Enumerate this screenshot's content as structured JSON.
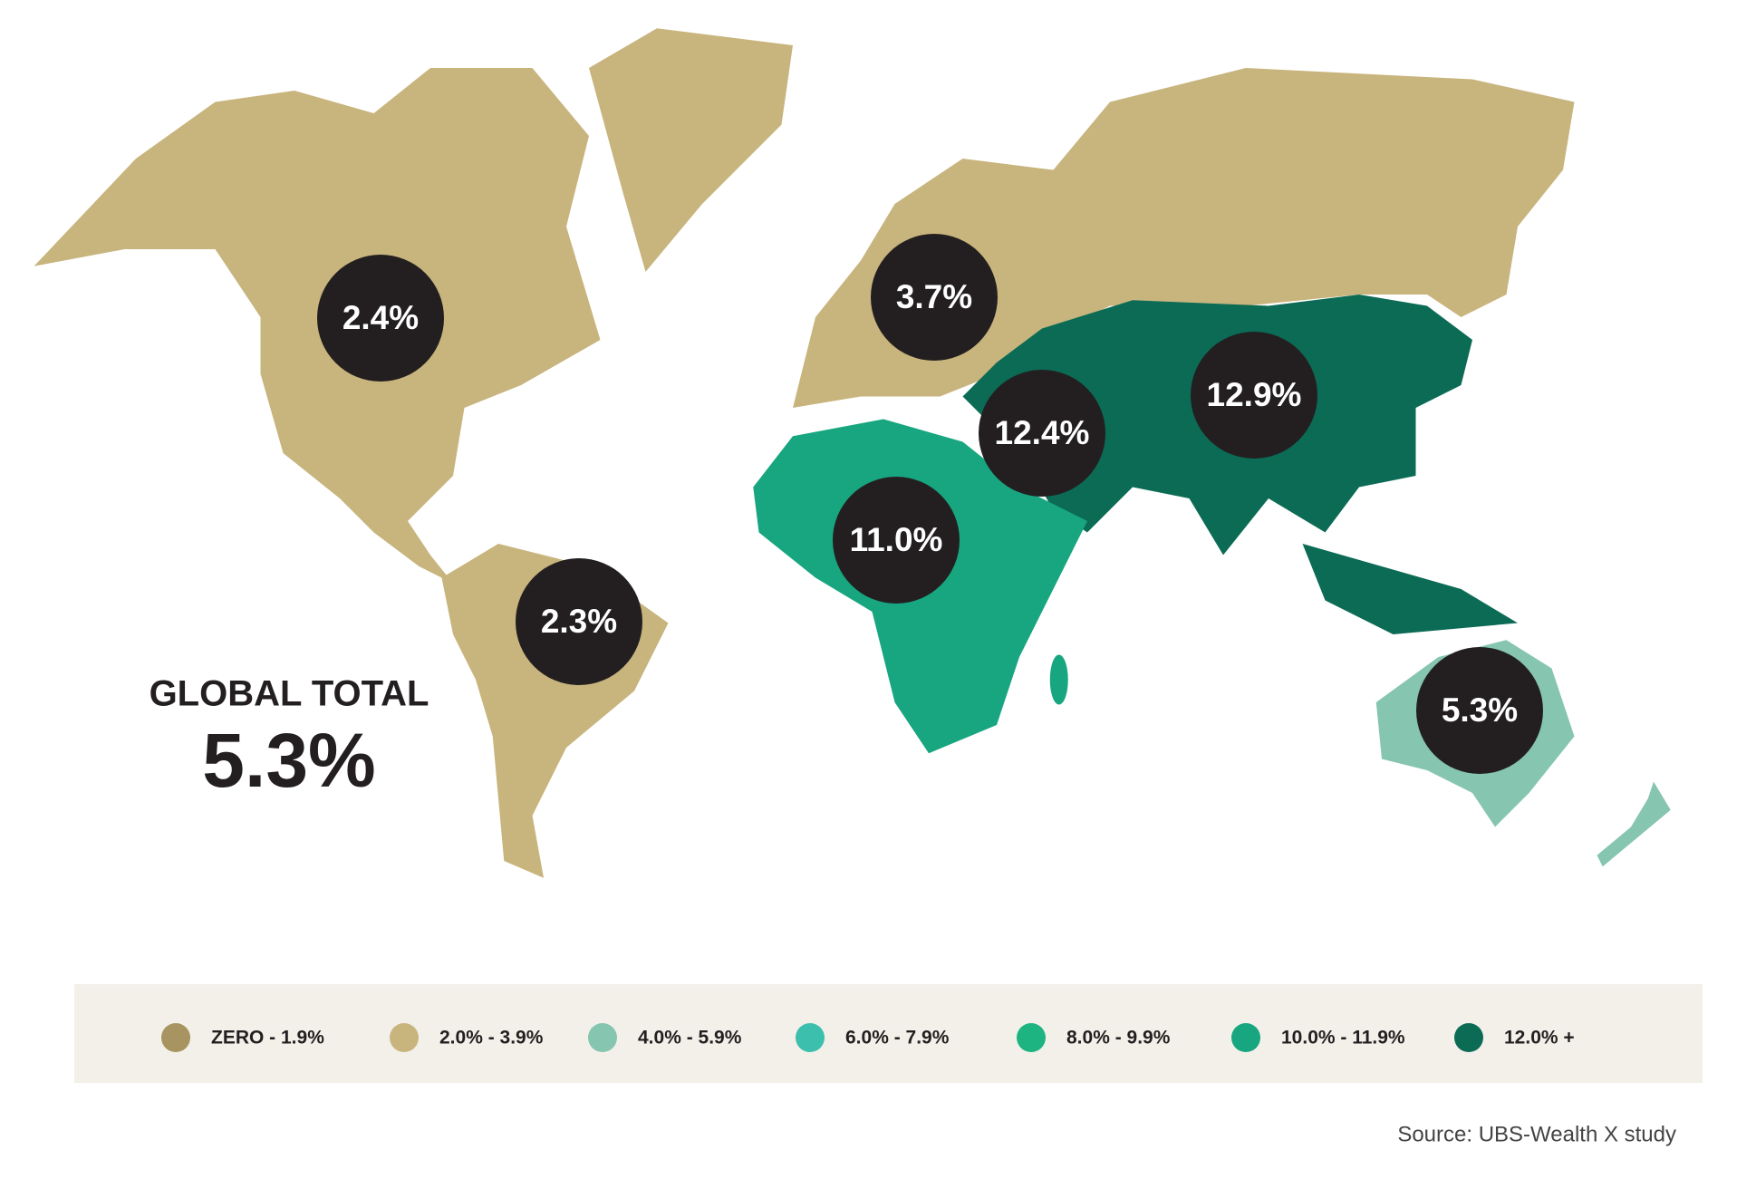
{
  "summary": {
    "title": "GLOBAL TOTAL",
    "value": "5.3%"
  },
  "regions": [
    {
      "label": "2.4%"
    },
    {
      "label": "3.7%"
    },
    {
      "label": "2.3%"
    },
    {
      "label": "11.0%"
    },
    {
      "label": "12.4%"
    },
    {
      "label": "12.9%"
    },
    {
      "label": "5.3%"
    }
  ],
  "legend": [
    {
      "label": "ZERO - 1.9%",
      "color": "#a79460"
    },
    {
      "label": "2.0% - 3.9%",
      "color": "#c8b47d"
    },
    {
      "label": "4.0% - 5.9%",
      "color": "#86c5b0"
    },
    {
      "label": "6.0% - 7.9%",
      "color": "#3dbfae"
    },
    {
      "label": "8.0% - 9.9%",
      "color": "#1db482"
    },
    {
      "label": "10.0% - 11.9%",
      "color": "#17a67f"
    },
    {
      "label": "12.0% +",
      "color": "#0b6b55"
    }
  ],
  "source": "Source: UBS-Wealth X study"
}
